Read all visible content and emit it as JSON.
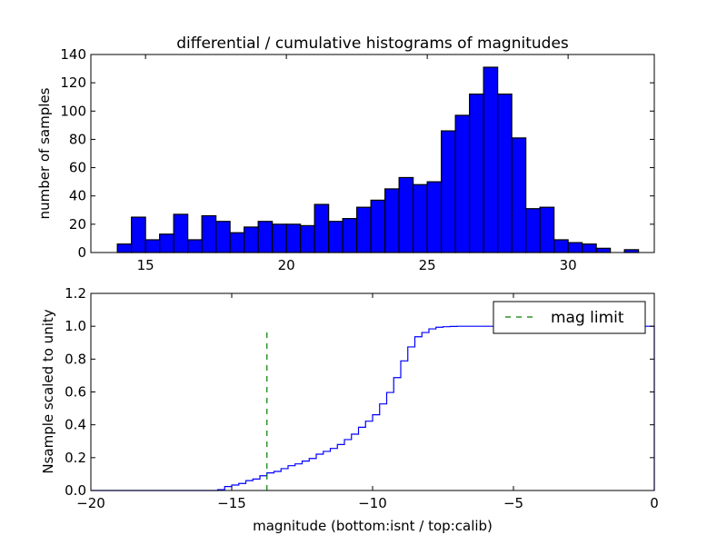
{
  "chart_data": [
    {
      "type": "bar",
      "title": "differential / cumulative histograms of magnitudes",
      "xlabel": "",
      "ylabel": "number of samples",
      "xlim": [
        13.06,
        33.06
      ],
      "ylim": [
        0,
        140
      ],
      "xticks": [
        15,
        20,
        25,
        30
      ],
      "yticks": [
        0,
        20,
        40,
        60,
        80,
        100,
        120,
        140
      ],
      "bin_width": 0.5,
      "bin_starts": [
        14.0,
        14.5,
        15.0,
        15.5,
        16.0,
        16.5,
        17.0,
        17.5,
        18.0,
        18.5,
        19.0,
        19.5,
        20.0,
        20.5,
        21.0,
        21.5,
        22.0,
        22.5,
        23.0,
        23.5,
        24.0,
        24.5,
        25.0,
        25.5,
        26.0,
        26.5,
        27.0,
        27.5,
        28.0,
        28.5,
        29.0,
        29.5,
        30.0,
        30.5,
        31.0,
        31.5,
        32.0
      ],
      "values": [
        6,
        25,
        9,
        13,
        27,
        9,
        26,
        22,
        14,
        18,
        22,
        20,
        20,
        19,
        34,
        22,
        24,
        32,
        37,
        45,
        53,
        48,
        50,
        86,
        97,
        112,
        131,
        112,
        81,
        31,
        32,
        9,
        7,
        6,
        3,
        0,
        2
      ],
      "color": "#0000ff",
      "grid": false
    },
    {
      "type": "line",
      "title": "",
      "xlabel": "magnitude (bottom:isnt / top:calib)",
      "ylabel": "Nsample scaled to unity",
      "xlim": [
        -20,
        0
      ],
      "ylim": [
        0,
        1.2
      ],
      "xticks": [
        -20,
        -15,
        -10,
        -5,
        0
      ],
      "yticks": [
        0.0,
        0.2,
        0.4,
        0.6,
        0.8,
        1.0,
        1.2
      ],
      "step_x": [
        -20,
        -15.5,
        -15.25,
        -15,
        -14.75,
        -14.5,
        -14.25,
        -14,
        -13.75,
        -13.5,
        -13.25,
        -13,
        -12.75,
        -12.5,
        -12.25,
        -12,
        -11.75,
        -11.5,
        -11.25,
        -11,
        -10.75,
        -10.5,
        -10.25,
        -10,
        -9.75,
        -9.5,
        -9.25,
        -9,
        -8.75,
        -8.5,
        -8.25,
        -8,
        -7.75,
        -7.5,
        -7.25,
        -7,
        0
      ],
      "step_y": [
        0,
        0.005,
        0.024,
        0.033,
        0.043,
        0.06,
        0.07,
        0.09,
        0.107,
        0.116,
        0.133,
        0.151,
        0.162,
        0.179,
        0.195,
        0.221,
        0.238,
        0.256,
        0.28,
        0.31,
        0.343,
        0.385,
        0.422,
        0.461,
        0.527,
        0.597,
        0.687,
        0.789,
        0.874,
        0.936,
        0.962,
        0.984,
        0.994,
        0.997,
        0.999,
        1.0,
        1.0
      ],
      "line_color": "#0000ff",
      "mag_limit": {
        "x": -13.75,
        "y_top": 0.97,
        "color": "#008000",
        "label": "mag limit"
      },
      "legend_placement": "top-right",
      "grid": false
    }
  ]
}
